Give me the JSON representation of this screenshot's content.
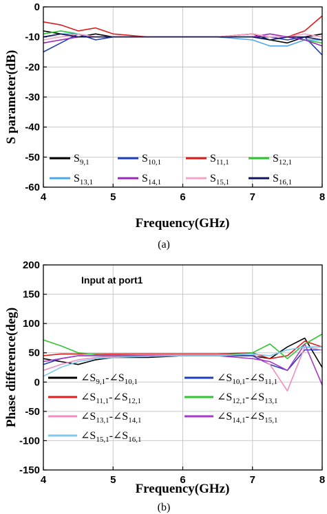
{
  "chart_data": [
    {
      "type": "line",
      "caption": "(a)",
      "xlabel": "Frequency(GHz)",
      "ylabel": "S parameter(dB)",
      "xlim": [
        4,
        8
      ],
      "ylim": [
        -60,
        0
      ],
      "xticks": [
        4,
        5,
        6,
        7,
        8
      ],
      "yticks": [
        0,
        -10,
        -20,
        -30,
        -40,
        -50,
        -60
      ],
      "grid": true,
      "legend_position": "bottom",
      "legend_columns": 4,
      "x": [
        4.0,
        4.25,
        4.5,
        4.75,
        5.0,
        5.5,
        6.0,
        6.5,
        7.0,
        7.25,
        7.5,
        7.75,
        8.0
      ],
      "series": [
        {
          "label_main": "S",
          "label_sub": "9,1",
          "color": "#000000",
          "values": [
            -8,
            -9,
            -10,
            -9,
            -10,
            -10,
            -10,
            -10,
            -9,
            -11,
            -12,
            -10,
            -9
          ]
        },
        {
          "label_main": "S",
          "label_sub": "10,1",
          "color": "#1f3fbf",
          "values": [
            -15,
            -12,
            -9,
            -11,
            -10,
            -10,
            -10,
            -10,
            -10,
            -10,
            -11,
            -10,
            -16
          ]
        },
        {
          "label_main": "S",
          "label_sub": "11,1",
          "color": "#e01b1b",
          "values": [
            -5,
            -6,
            -8,
            -7,
            -9,
            -10,
            -10,
            -10,
            -9,
            -10,
            -10,
            -8,
            -3
          ]
        },
        {
          "label_main": "S",
          "label_sub": "12,1",
          "color": "#2ec52e",
          "values": [
            -9,
            -8,
            -9,
            -10,
            -10,
            -10,
            -10,
            -10,
            -10,
            -11,
            -10,
            -11,
            -12
          ]
        },
        {
          "label_main": "S",
          "label_sub": "13,1",
          "color": "#4aa8e8",
          "values": [
            -10,
            -9,
            -9,
            -10,
            -10,
            -10,
            -10,
            -10,
            -11,
            -13,
            -13,
            -11,
            -11
          ]
        },
        {
          "label_main": "S",
          "label_sub": "14,1",
          "color": "#9a27b8",
          "values": [
            -12,
            -11,
            -10,
            -10,
            -10,
            -10,
            -10,
            -10,
            -10,
            -9,
            -10,
            -11,
            -13
          ]
        },
        {
          "label_main": "S",
          "label_sub": "15,1",
          "color": "#f5a3c8",
          "values": [
            -11,
            -10,
            -9,
            -10,
            -10,
            -10,
            -10,
            -10,
            -9,
            -10,
            -10,
            -9,
            -10
          ]
        },
        {
          "label_main": "S",
          "label_sub": "16,1",
          "color": "#10145c",
          "values": [
            -10,
            -9,
            -10,
            -10,
            -10,
            -10,
            -10,
            -10,
            -10,
            -11,
            -10,
            -10,
            -11
          ]
        }
      ]
    },
    {
      "type": "line",
      "caption": "(b)",
      "annotation": "Input at port1",
      "xlabel": "Frequency(GHz)",
      "ylabel": "Phase difference(deg)",
      "xlim": [
        4,
        8
      ],
      "ylim": [
        -150,
        200
      ],
      "xticks": [
        4,
        5,
        6,
        7,
        8
      ],
      "yticks": [
        200,
        150,
        100,
        50,
        0,
        -50,
        -100,
        -150
      ],
      "grid": true,
      "legend_position": "bottom-left",
      "legend_columns": 2,
      "x": [
        4.0,
        4.25,
        4.5,
        4.75,
        5.0,
        5.5,
        6.0,
        6.5,
        7.0,
        7.25,
        7.5,
        7.75,
        8.0
      ],
      "series": [
        {
          "label": [
            "∠S",
            "9,1",
            "-∠S",
            "10,1"
          ],
          "color": "#000000",
          "values": [
            40,
            35,
            30,
            38,
            42,
            42,
            45,
            45,
            45,
            40,
            60,
            75,
            25
          ]
        },
        {
          "label": [
            "∠S",
            "10,1",
            "-∠S",
            "11,1"
          ],
          "color": "#1f3fbf",
          "values": [
            30,
            40,
            45,
            45,
            45,
            45,
            45,
            45,
            45,
            30,
            20,
            55,
            55
          ]
        },
        {
          "label": [
            "∠S",
            "11,1",
            "-∠S",
            "12,1"
          ],
          "color": "#e01b1b",
          "values": [
            45,
            48,
            48,
            48,
            48,
            48,
            48,
            48,
            50,
            40,
            45,
            70,
            60
          ]
        },
        {
          "label": [
            "∠S",
            "12,1",
            "-∠S",
            "13,1"
          ],
          "color": "#2ec52e",
          "values": [
            72,
            62,
            50,
            47,
            46,
            45,
            45,
            45,
            50,
            65,
            40,
            65,
            82
          ]
        },
        {
          "label": [
            "∠S",
            "13,1",
            "-∠S",
            "14,1"
          ],
          "color": "#f08cc0",
          "values": [
            20,
            30,
            38,
            42,
            44,
            45,
            45,
            45,
            48,
            30,
            -15,
            60,
            55
          ]
        },
        {
          "label": [
            "∠S",
            "14,1",
            "-∠S",
            "15,1"
          ],
          "color": "#a838c8",
          "values": [
            35,
            40,
            45,
            45,
            45,
            45,
            45,
            45,
            40,
            35,
            20,
            65,
            -5
          ]
        },
        {
          "label": [
            "∠S",
            "15,1",
            "-∠S",
            "16,1"
          ],
          "color": "#7cc8ee",
          "values": [
            10,
            25,
            35,
            40,
            42,
            44,
            45,
            45,
            48,
            45,
            55,
            60,
            60
          ]
        }
      ]
    }
  ]
}
